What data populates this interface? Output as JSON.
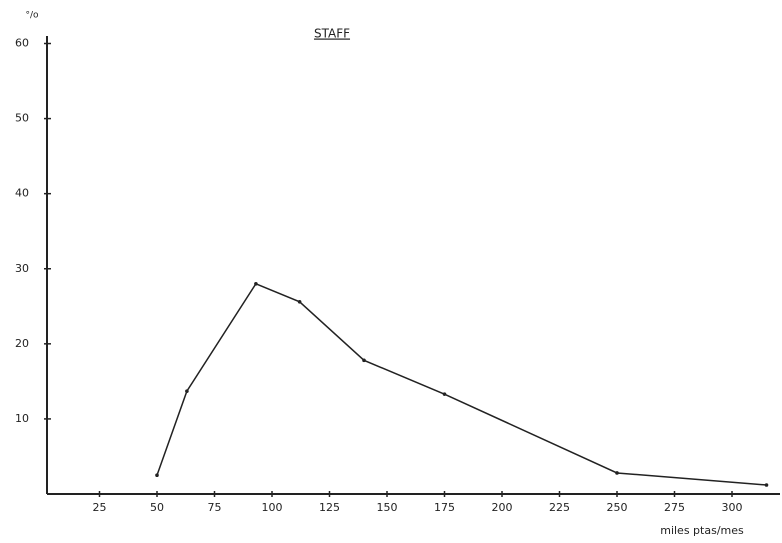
{
  "chart_data": {
    "type": "line",
    "title": "STAFF",
    "y_label": "°/o",
    "x_label": "miles ptas/mes",
    "x": [
      50,
      63,
      93,
      112,
      140,
      175,
      250,
      315
    ],
    "series": [
      {
        "name": "STAFF",
        "color": "#222222",
        "values": [
          2.5,
          13.7,
          28,
          25.6,
          17.8,
          13.3,
          2.8,
          1.2
        ]
      }
    ],
    "xlim": [
      0,
      320
    ],
    "xticks": [
      25,
      50,
      75,
      100,
      125,
      150,
      175,
      200,
      225,
      250,
      275,
      300
    ],
    "ylim": [
      0,
      61
    ],
    "yticks": [
      10,
      20,
      30,
      40,
      50,
      60
    ],
    "grid": false
  }
}
